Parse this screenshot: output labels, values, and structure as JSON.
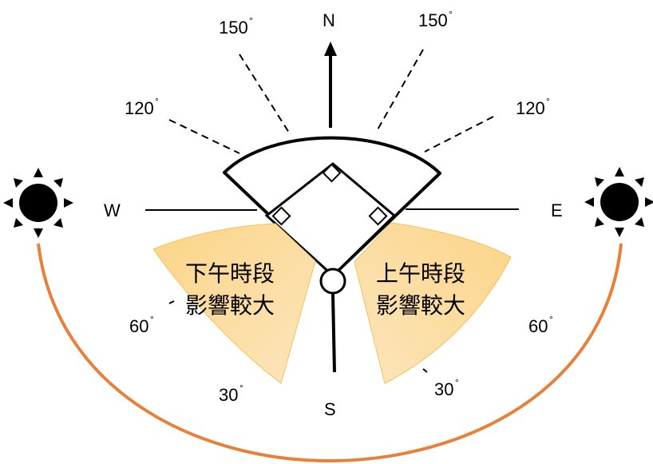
{
  "compass": {
    "north": "N",
    "south": "S",
    "east": "E",
    "west": "W"
  },
  "angles": {
    "deg150_left": "150",
    "deg150_right": "150",
    "deg120_left": "120",
    "deg120_right": "120",
    "deg60_left": "60",
    "deg60_right": "60",
    "deg30_left": "30",
    "deg30_right": "30",
    "degree_mark": "°"
  },
  "zones": {
    "afternoon": {
      "line1": "下午時段",
      "line2": "影響較大"
    },
    "morning": {
      "line1": "上午時段",
      "line2": "影響較大"
    }
  },
  "colors": {
    "sun_path": "#e8803a",
    "zone_fill": "#fbd688",
    "zone_stroke": "#f2c25a",
    "sun": "#000000"
  },
  "icons": {
    "west_sun": "sun-icon",
    "east_sun": "sun-icon"
  }
}
